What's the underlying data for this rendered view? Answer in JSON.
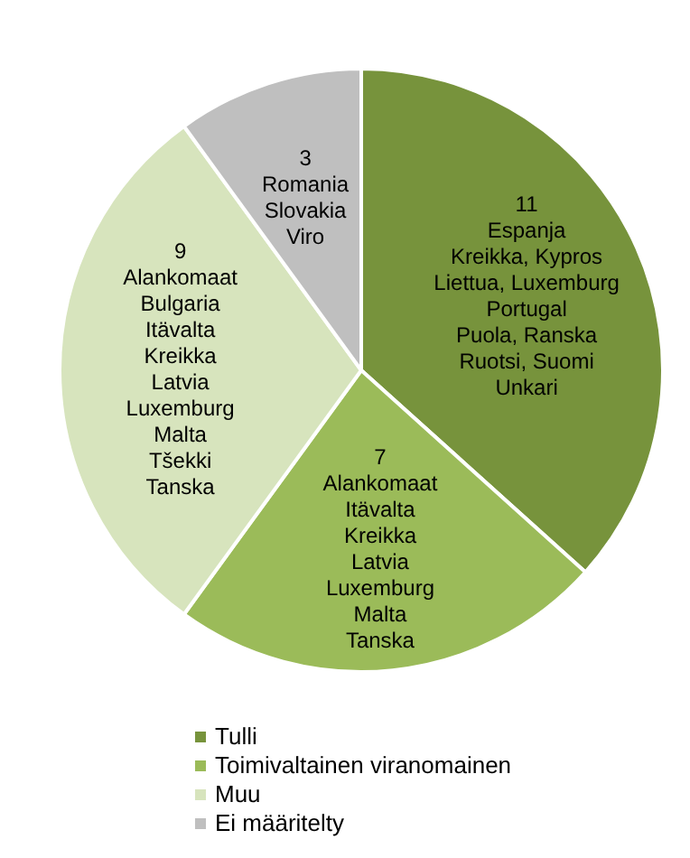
{
  "chart_data": {
    "type": "pie",
    "categories": [
      "Tulli",
      "Toimivaltainen viranomainen",
      "Muu",
      "Ei määritelty"
    ],
    "values": [
      11,
      7,
      9,
      3
    ],
    "colors": [
      "#77933c",
      "#9bbb59",
      "#d7e4bd",
      "#bfbfbf"
    ],
    "value_labels": [
      "11\nEspanja\nKreikka, Kypros\nLiettua, Luxemburg\nPortugal\nPuola, Ranska\nRuotsi, Suomi\nUnkari",
      "7\nAlankomaat\nItävalta\nKreikka\nLatvia\nLuxemburg\nMalta\nTanska",
      "9\nAlankomaat\nBulgaria\nItävalta\nKreikka\nLatvia\nLuxemburg\nMalta\nTšekki\nTanska",
      "3\nRomania\nSlovakia\nViro"
    ],
    "legend": "bottom"
  }
}
